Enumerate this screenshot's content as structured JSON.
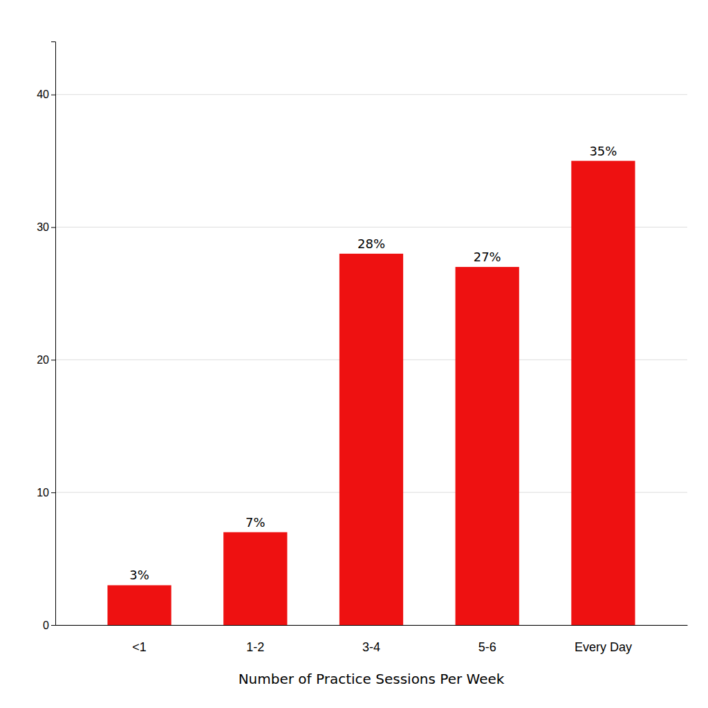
{
  "chart_data": {
    "type": "bar",
    "xlabel": "Number of Practice Sessions Per Week",
    "categories": [
      "<1",
      "1-2",
      "3-4",
      "5-6",
      "Every Day"
    ],
    "values": [
      3,
      7,
      28,
      27,
      35
    ],
    "value_labels": [
      "3%",
      "7%",
      "28%",
      "27%",
      "35%"
    ],
    "data_labels": true,
    "color": "#ee1111",
    "ylim": [
      0,
      44
    ],
    "yticks": [
      0,
      10,
      20,
      30,
      40
    ],
    "grid": true
  }
}
